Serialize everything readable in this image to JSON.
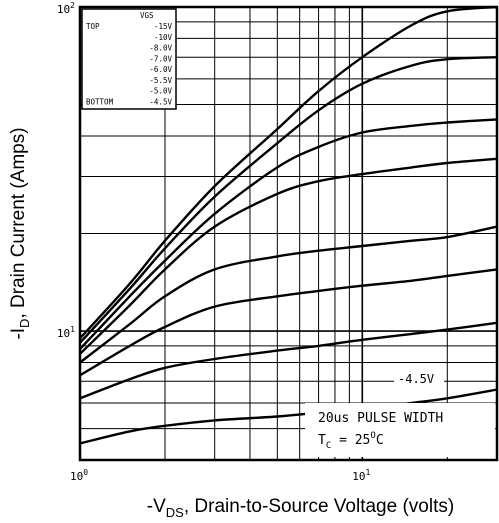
{
  "chart_data": {
    "type": "line",
    "xlabel_parts": {
      "pre": "-V",
      "sub": "DS",
      "post": ", Drain-to-Source Voltage (volts)"
    },
    "ylabel_parts": {
      "pre": "-I",
      "sub": "D",
      "post": ", Drain Current (Amps)"
    },
    "x_scale": "log",
    "y_scale": "log",
    "xlim": [
      1,
      30
    ],
    "ylim": [
      4,
      100
    ],
    "x_ticks": [
      {
        "value": 1,
        "base": "10",
        "exp": "0"
      },
      {
        "value": 10,
        "base": "10",
        "exp": "1"
      }
    ],
    "y_ticks": [
      {
        "value": 10,
        "base": "10",
        "exp": "1"
      },
      {
        "value": 100,
        "base": "10",
        "exp": "2"
      }
    ],
    "grid": true,
    "legend": {
      "placement": "top-left",
      "header": "VGS",
      "top_label": "TOP",
      "bottom_label": "BOTTOM",
      "entries": [
        "-15V",
        "-10V",
        "-8.0V",
        "-7.0V",
        "-6.0V",
        "-5.5V",
        "-5.0V",
        "-4.5V"
      ]
    },
    "annotations": {
      "curve_label": "-4.5V",
      "pulse": "20us PULSE WIDTH",
      "tc_pre": "T",
      "tc_sub": "C",
      "tc_mid": " = 25",
      "tc_sup": "O",
      "tc_post": "C"
    },
    "x": [
      1,
      1.5,
      2,
      3,
      5,
      7,
      10,
      15,
      20,
      30
    ],
    "series": [
      {
        "name": "-15V",
        "values": [
          9.5,
          14,
          19,
          28,
          42,
          55,
          70,
          88,
          97,
          100
        ]
      },
      {
        "name": "-10V",
        "values": [
          9.2,
          13.5,
          18,
          26,
          38,
          48,
          58,
          66,
          69,
          70
        ]
      },
      {
        "name": "-8.0V",
        "values": [
          8.8,
          12.8,
          16.5,
          23,
          32,
          37,
          41,
          43,
          44,
          45
        ]
      },
      {
        "name": "-7.0V",
        "values": [
          8.5,
          12,
          15.5,
          21,
          26.5,
          29,
          30.5,
          32,
          33,
          34
        ]
      },
      {
        "name": "-6.0V",
        "values": [
          8,
          10.5,
          12.8,
          15.5,
          17,
          17.7,
          18.3,
          19,
          19.5,
          21
        ]
      },
      {
        "name": "-5.5V",
        "values": [
          7.3,
          9,
          10.3,
          11.9,
          12.8,
          13.3,
          13.8,
          14.3,
          14.8,
          15.5
        ]
      },
      {
        "name": "-5.0V",
        "values": [
          6.2,
          7.1,
          7.7,
          8.2,
          8.7,
          9,
          9.4,
          9.8,
          10.1,
          10.6
        ]
      },
      {
        "name": "-4.5V",
        "values": [
          4.5,
          4.9,
          5.1,
          5.3,
          5.45,
          5.6,
          5.75,
          6,
          6.2,
          6.6
        ]
      }
    ]
  }
}
